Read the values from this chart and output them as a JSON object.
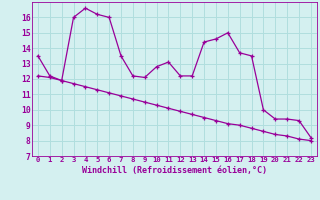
{
  "line1_x": [
    0,
    1,
    2,
    3,
    4,
    5,
    6,
    7,
    8,
    9,
    10,
    11,
    12,
    13,
    14,
    15,
    16,
    17,
    18,
    19,
    20,
    21,
    22,
    23
  ],
  "line1_y": [
    13.5,
    12.2,
    11.9,
    16.0,
    16.6,
    16.2,
    16.0,
    13.5,
    12.2,
    12.1,
    12.8,
    13.1,
    12.2,
    12.2,
    14.4,
    14.6,
    15.0,
    13.7,
    13.5,
    10.0,
    9.4,
    9.4,
    9.3,
    8.2
  ],
  "line2_x": [
    0,
    1,
    2,
    3,
    4,
    5,
    6,
    7,
    8,
    9,
    10,
    11,
    12,
    13,
    14,
    15,
    16,
    17,
    18,
    19,
    20,
    21,
    22,
    23
  ],
  "line2_y": [
    12.2,
    12.1,
    11.9,
    11.7,
    11.5,
    11.3,
    11.1,
    10.9,
    10.7,
    10.5,
    10.3,
    10.1,
    9.9,
    9.7,
    9.5,
    9.3,
    9.1,
    9.0,
    8.8,
    8.6,
    8.4,
    8.3,
    8.1,
    8.0
  ],
  "line_color": "#990099",
  "bg_color": "#d4f0f0",
  "grid_color": "#b0dede",
  "xlabel": "Windchill (Refroidissement éolien,°C)",
  "ylim": [
    7,
    17
  ],
  "xlim": [
    -0.5,
    23.5
  ],
  "yticks": [
    7,
    8,
    9,
    10,
    11,
    12,
    13,
    14,
    15,
    16
  ],
  "xticks": [
    0,
    1,
    2,
    3,
    4,
    5,
    6,
    7,
    8,
    9,
    10,
    11,
    12,
    13,
    14,
    15,
    16,
    17,
    18,
    19,
    20,
    21,
    22,
    23
  ]
}
